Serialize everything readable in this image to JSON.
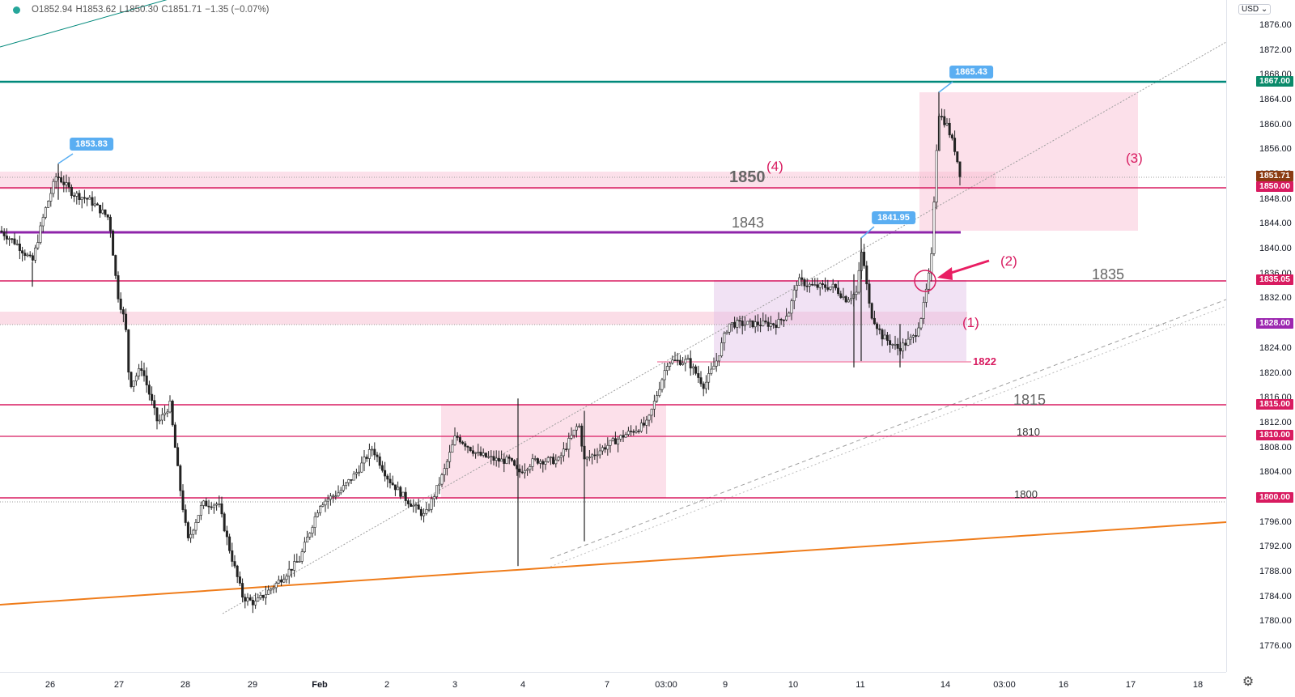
{
  "legend": {
    "open": "O1852.94",
    "high": "H1853.62",
    "low": "L1850.30",
    "close": "C1851.71",
    "change": "−1.35 (−0.07%)"
  },
  "currency_label": "USD",
  "price_axis": {
    "ticks": [
      "1876.00",
      "1872.00",
      "1868.00",
      "1864.00",
      "1860.00",
      "1856.00",
      "1852.00",
      "1848.00",
      "1844.00",
      "1840.00",
      "1836.00",
      "1832.00",
      "1828.00",
      "1824.00",
      "1820.00",
      "1816.00",
      "1812.00",
      "1808.00",
      "1804.00",
      "1800.00",
      "1796.00",
      "1792.00",
      "1788.00",
      "1784.00",
      "1780.00",
      "1776.00"
    ],
    "tags": [
      {
        "label": "1867.00",
        "color": "#0a8a6a"
      },
      {
        "label": "1851.71",
        "color": "#8a3b12"
      },
      {
        "label": "1850.00",
        "color": "#d81b60"
      },
      {
        "label": "1835.05",
        "color": "#d81b60"
      },
      {
        "label": "1828.00",
        "color": "#9c27b0"
      },
      {
        "label": "1815.00",
        "color": "#d81b60"
      },
      {
        "label": "1810.00",
        "color": "#d81b60"
      },
      {
        "label": "1800.00",
        "color": "#d81b60"
      }
    ]
  },
  "time_axis": [
    "26",
    "27",
    "28",
    "29",
    "Feb",
    "2",
    "3",
    "4",
    "7",
    "03:00",
    "9",
    "10",
    "11",
    "14",
    "03:00",
    "16",
    "17",
    "18"
  ],
  "callouts": [
    "1853.83",
    "1841.95",
    "1865.43"
  ],
  "annotations": {
    "level_1850": "1850",
    "label_4": "(4)",
    "level_1843": "1843",
    "label_3": "(3)",
    "label_2": "(2)",
    "level_1835": "1835",
    "label_1": "(1)",
    "level_1822": "1822",
    "level_1815": "1815",
    "level_1810": "1810",
    "level_1800": "1800"
  },
  "colors": {
    "up_candle": "#000000",
    "down_candle": "#000000",
    "trend_green": "#00897b",
    "trend_orange": "#ef7c1a",
    "magenta": "#d81b60",
    "purple": "#9c27b0"
  },
  "icons": {
    "settings": "gear-icon"
  }
}
